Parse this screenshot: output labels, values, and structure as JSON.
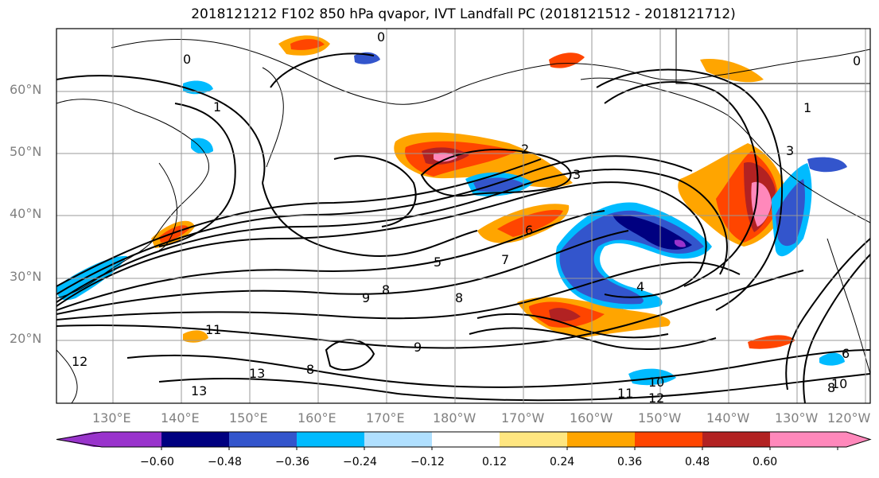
{
  "title": "2018121212 F102 850 hPa qvapor, IVT Landfall PC (2018121512 - 2018121712)",
  "lat_labels": [
    "60°N",
    "50°N",
    "40°N",
    "30°N",
    "20°N"
  ],
  "lon_labels": [
    "130°E",
    "140°E",
    "150°E",
    "160°E",
    "170°E",
    "180°W",
    "170°W",
    "160°W",
    "150°W",
    "140°W",
    "130°W",
    "120°W"
  ],
  "colorbar": {
    "colors": [
      "#9933cc",
      "#000080",
      "#3355cc",
      "#00bbff",
      "#b0e0ff",
      "#ffffff",
      "#ffe680",
      "#ffa500",
      "#ff4500",
      "#b22222",
      "#ff88bb"
    ],
    "tick_labels": [
      "−0.60",
      "−0.48",
      "−0.36",
      "−0.24",
      "−0.12",
      "0.12",
      "0.24",
      "0.36",
      "0.48",
      "0.60"
    ]
  },
  "contour_labels": [
    "0",
    "0",
    "1",
    "2",
    "3",
    "4",
    "5",
    "6",
    "7",
    "8",
    "8",
    "8",
    "9",
    "9",
    "10",
    "10",
    "11",
    "11",
    "12",
    "12",
    "13",
    "13",
    "0",
    "1",
    "3",
    "6",
    "8"
  ]
}
